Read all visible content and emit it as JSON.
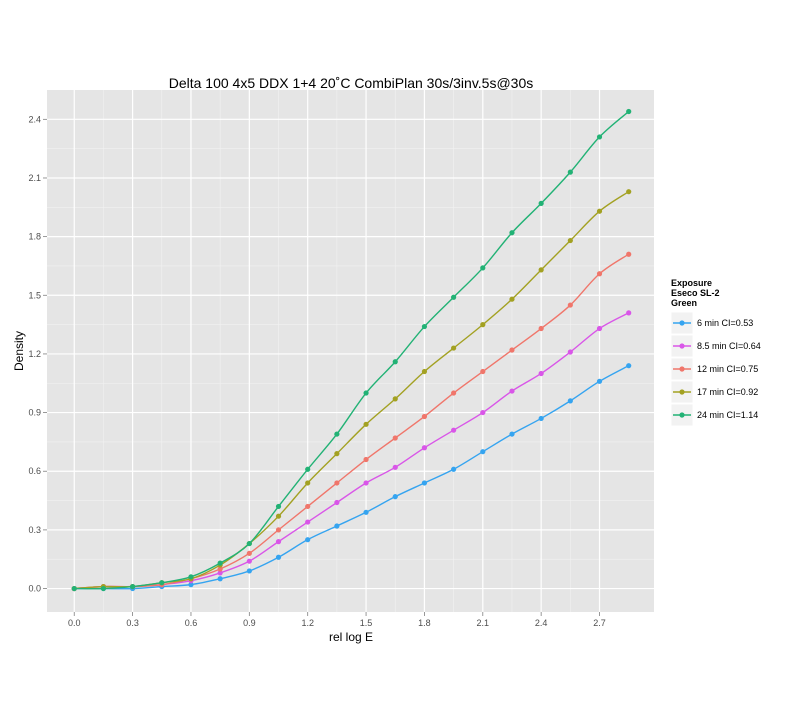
{
  "chart_data": {
    "type": "line",
    "title": "Delta 100 4x5 DDX 1+4 20˚C CombiPlan 30s/3inv.5s@30s",
    "xlabel": "rel log E",
    "ylabel": "Density",
    "xlim": [
      -0.14,
      2.98
    ],
    "ylim": [
      -0.12,
      2.55
    ],
    "xticks": [
      0.0,
      0.3,
      0.6,
      0.9,
      1.2,
      1.5,
      1.8,
      2.1,
      2.4,
      2.7
    ],
    "xtick_labels": [
      "0.0",
      "0.3",
      "0.6",
      "0.9",
      "1.2",
      "1.5",
      "1.8",
      "2.1",
      "2.4",
      "2.7"
    ],
    "yticks": [
      0.0,
      0.3,
      0.6,
      0.9,
      1.2,
      1.5,
      1.8,
      2.1,
      2.4
    ],
    "ytick_labels": [
      "0.0",
      "0.3",
      "0.6",
      "0.9",
      "1.2",
      "1.5",
      "1.8",
      "2.1",
      "2.4"
    ],
    "grid": true,
    "legend_position": "right",
    "legend_title": [
      "Exposure",
      "Eseco SL-2",
      "Green"
    ],
    "x": [
      0.0,
      0.15,
      0.3,
      0.45,
      0.6,
      0.75,
      0.9,
      1.05,
      1.2,
      1.35,
      1.5,
      1.65,
      1.8,
      1.95,
      2.1,
      2.25,
      2.4,
      2.55,
      2.7,
      2.85
    ],
    "series": [
      {
        "name": "6 min CI=0.53",
        "color": "#35a4f0",
        "values": [
          0.0,
          0.0,
          0.0,
          0.01,
          0.02,
          0.05,
          0.09,
          0.16,
          0.25,
          0.32,
          0.39,
          0.47,
          0.54,
          0.61,
          0.7,
          0.79,
          0.87,
          0.96,
          1.06,
          1.14
        ]
      },
      {
        "name": "8.5 min CI=0.64",
        "color": "#d956e8",
        "values": [
          0.0,
          0.01,
          0.01,
          0.02,
          0.04,
          0.08,
          0.14,
          0.24,
          0.34,
          0.44,
          0.54,
          0.62,
          0.72,
          0.81,
          0.9,
          1.01,
          1.1,
          1.21,
          1.33,
          1.41
        ]
      },
      {
        "name": "12 min CI=0.75",
        "color": "#f0766b",
        "values": [
          0.0,
          0.01,
          0.01,
          0.02,
          0.05,
          0.1,
          0.18,
          0.3,
          0.42,
          0.54,
          0.66,
          0.77,
          0.88,
          1.0,
          1.11,
          1.22,
          1.33,
          1.45,
          1.61,
          1.71
        ]
      },
      {
        "name": "17 min CI=0.92",
        "color": "#a3a122",
        "values": [
          0.0,
          0.01,
          0.01,
          0.03,
          0.05,
          0.12,
          0.23,
          0.37,
          0.54,
          0.69,
          0.84,
          0.97,
          1.11,
          1.23,
          1.35,
          1.48,
          1.63,
          1.78,
          1.93,
          2.03
        ]
      },
      {
        "name": "24 min CI=1.14",
        "color": "#22b275",
        "values": [
          0.0,
          0.0,
          0.01,
          0.03,
          0.06,
          0.13,
          0.23,
          0.42,
          0.61,
          0.79,
          1.0,
          1.16,
          1.34,
          1.49,
          1.64,
          1.82,
          1.97,
          2.13,
          2.31,
          2.44
        ]
      }
    ]
  }
}
